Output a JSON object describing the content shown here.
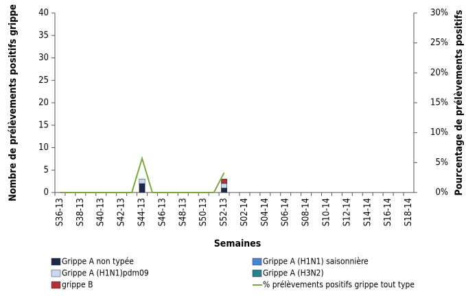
{
  "chart_data": {
    "type": "bar",
    "xlabel": "Semaines",
    "ylabel": "Nombre de prélèvements positifs grippe",
    "y2label": "Pourcentage de prélèvements positifs",
    "categories": [
      "S36-13",
      null,
      "S38-13",
      null,
      "S40-13",
      null,
      "S42-13",
      null,
      "S44-13",
      null,
      "S46-13",
      null,
      "S48-13",
      null,
      "S50-13",
      null,
      "S52-13",
      null,
      "S02-14",
      null,
      "S04-14",
      null,
      "S06-14",
      null,
      "S08-14",
      null,
      "S10-14",
      null,
      "S12-14",
      null,
      "S14-14",
      null,
      "S16-14",
      null,
      "S18-14"
    ],
    "ylim": [
      0,
      40
    ],
    "yticks": [
      0,
      5,
      10,
      15,
      20,
      25,
      30,
      35,
      40
    ],
    "y2lim": [
      0,
      30
    ],
    "y2ticks": [
      {
        "value": 0,
        "label": "0%"
      },
      {
        "value": 5,
        "label": "5%"
      },
      {
        "value": 10,
        "label": "10%"
      },
      {
        "value": 15,
        "label": "15%"
      },
      {
        "value": 20,
        "label": "20%"
      },
      {
        "value": 25,
        "label": "25%"
      },
      {
        "value": 30,
        "label": "30%"
      }
    ],
    "grid": false,
    "series": [
      {
        "name": "Grippe A non typée",
        "color": "#1c2a48",
        "values": [
          0,
          0,
          0,
          0,
          0,
          0,
          0,
          0,
          2,
          0,
          0,
          0,
          0,
          0,
          0,
          0,
          1,
          0,
          0,
          0,
          0,
          0,
          0,
          0,
          0,
          0,
          0,
          0,
          0,
          0,
          0,
          0,
          0,
          0,
          0
        ]
      },
      {
        "name": "Grippe A (H1N1) saisonnière",
        "color": "#4a86d6",
        "values": [
          0,
          0,
          0,
          0,
          0,
          0,
          0,
          0,
          0,
          0,
          0,
          0,
          0,
          0,
          0,
          0,
          0,
          0,
          0,
          0,
          0,
          0,
          0,
          0,
          0,
          0,
          0,
          0,
          0,
          0,
          0,
          0,
          0,
          0,
          0
        ]
      },
      {
        "name": "Grippe A (H1N1)pdm09",
        "color": "#c6daef",
        "values": [
          0,
          0,
          0,
          0,
          0,
          0,
          0,
          0,
          1,
          0,
          0,
          0,
          0,
          0,
          0,
          0,
          1,
          0,
          0,
          0,
          0,
          0,
          0,
          0,
          0,
          0,
          0,
          0,
          0,
          0,
          0,
          0,
          0,
          0,
          0
        ]
      },
      {
        "name": "Grippe A (H3N2)",
        "color": "#2b8090",
        "values": [
          0,
          0,
          0,
          0,
          0,
          0,
          0,
          0,
          0,
          0,
          0,
          0,
          0,
          0,
          0,
          0,
          0,
          0,
          0,
          0,
          0,
          0,
          0,
          0,
          0,
          0,
          0,
          0,
          0,
          0,
          0,
          0,
          0,
          0,
          0
        ]
      },
      {
        "name": "grippe B",
        "color": "#b03232",
        "values": [
          0,
          0,
          0,
          0,
          0,
          0,
          0,
          0,
          0,
          0,
          0,
          0,
          0,
          0,
          0,
          0,
          1,
          0,
          0,
          0,
          0,
          0,
          0,
          0,
          0,
          0,
          0,
          0,
          0,
          0,
          0,
          0,
          0,
          0,
          0
        ]
      },
      {
        "name": "% prélèvements positifs grippe tout type",
        "color": "#7aa83a",
        "type": "line",
        "axis": "y2",
        "values": [
          0,
          0,
          0,
          0,
          0,
          0,
          0,
          0,
          5.7,
          0,
          0,
          0,
          0,
          0,
          0,
          0,
          3.3,
          null,
          null,
          null,
          null,
          null,
          null,
          null,
          null,
          null,
          null,
          null,
          null,
          null,
          null,
          null,
          null,
          null,
          null
        ]
      }
    ]
  }
}
